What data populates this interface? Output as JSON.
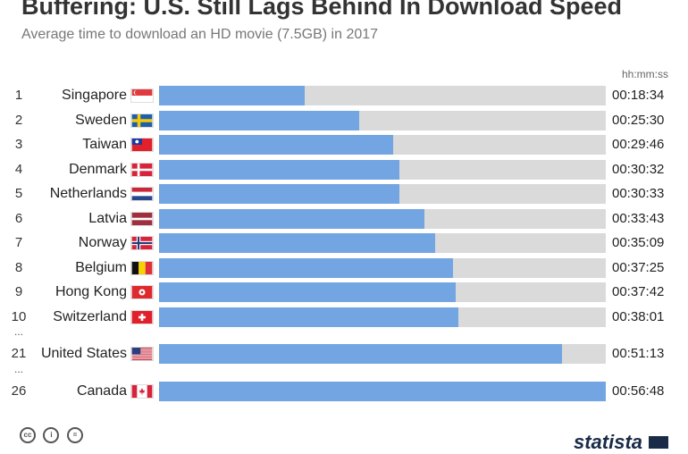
{
  "header": {
    "title": "Buffering: U.S. Still Lags Behind In Download Speed",
    "subtitle": "Average time to download an HD movie (7.5GB) in 2017",
    "unit_label": "hh:mm:ss"
  },
  "chart_data": {
    "type": "bar",
    "orientation": "horizontal",
    "title": "Buffering: U.S. Still Lags Behind In Download Speed",
    "subtitle": "Average time to download an HD movie (7.5GB) in 2017",
    "value_unit": "hh:mm:ss",
    "categories": [
      "Singapore",
      "Sweden",
      "Taiwan",
      "Denmark",
      "Netherlands",
      "Latvia",
      "Norway",
      "Belgium",
      "Hong Kong",
      "Switzerland",
      "United States",
      "Canada"
    ],
    "ranks": [
      "1",
      "2",
      "3",
      "4",
      "5",
      "6",
      "7",
      "8",
      "9",
      "10",
      "21",
      "26"
    ],
    "value_labels": [
      "00:18:34",
      "00:25:30",
      "00:29:46",
      "00:30:32",
      "00:30:33",
      "00:33:43",
      "00:35:09",
      "00:37:25",
      "00:37:42",
      "00:38:01",
      "00:51:13",
      "00:56:48"
    ],
    "values_seconds": [
      1114,
      1530,
      1786,
      1832,
      1833,
      2023,
      2109,
      2245,
      2262,
      2281,
      3073,
      3408
    ],
    "max_seconds": 3408,
    "gap_marker": "..."
  },
  "colors": {
    "bar": "#72a5e2",
    "track": "#dadada"
  },
  "footer": {
    "brand": "statista"
  }
}
